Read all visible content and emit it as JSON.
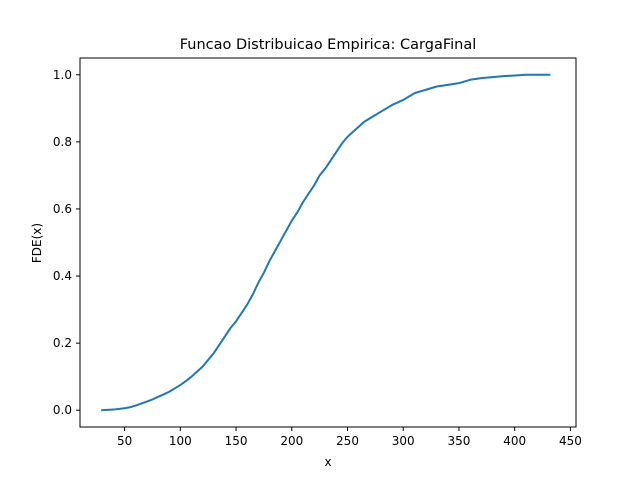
{
  "chart_data": {
    "type": "line",
    "title": "Funcao Distribuicao Empirica: CargaFinal",
    "xlabel": "x",
    "ylabel": "FDE(x)",
    "xlim": [
      10,
      455
    ],
    "ylim": [
      -0.05,
      1.05
    ],
    "xticks": [
      50,
      100,
      150,
      200,
      250,
      300,
      350,
      400,
      450
    ],
    "yticks": [
      0.0,
      0.2,
      0.4,
      0.6,
      0.8,
      1.0
    ],
    "xtick_labels": [
      "50",
      "100",
      "150",
      "200",
      "250",
      "300",
      "350",
      "400",
      "450"
    ],
    "ytick_labels": [
      "0.0",
      "0.2",
      "0.4",
      "0.6",
      "0.8",
      "1.0"
    ],
    "grid": false,
    "series": [
      {
        "color": "#1f77b4",
        "x": [
          29,
          40,
          50,
          55,
          60,
          65,
          70,
          75,
          80,
          85,
          90,
          95,
          100,
          105,
          110,
          115,
          120,
          125,
          130,
          135,
          140,
          145,
          150,
          155,
          160,
          165,
          170,
          175,
          180,
          185,
          190,
          195,
          200,
          205,
          210,
          215,
          220,
          225,
          230,
          235,
          240,
          245,
          250,
          255,
          260,
          265,
          270,
          275,
          280,
          285,
          290,
          300,
          310,
          320,
          330,
          340,
          350,
          360,
          370,
          380,
          390,
          400,
          410,
          420,
          432
        ],
        "y": [
          0.0,
          0.002,
          0.006,
          0.009,
          0.014,
          0.02,
          0.026,
          0.032,
          0.04,
          0.047,
          0.055,
          0.065,
          0.075,
          0.087,
          0.1,
          0.115,
          0.13,
          0.15,
          0.17,
          0.195,
          0.22,
          0.245,
          0.265,
          0.29,
          0.315,
          0.345,
          0.38,
          0.41,
          0.445,
          0.475,
          0.505,
          0.535,
          0.565,
          0.59,
          0.62,
          0.645,
          0.67,
          0.7,
          0.72,
          0.745,
          0.77,
          0.795,
          0.815,
          0.83,
          0.845,
          0.86,
          0.87,
          0.88,
          0.89,
          0.9,
          0.91,
          0.925,
          0.945,
          0.955,
          0.965,
          0.97,
          0.975,
          0.985,
          0.99,
          0.993,
          0.996,
          0.998,
          1.0,
          1.0,
          1.0
        ]
      }
    ]
  }
}
